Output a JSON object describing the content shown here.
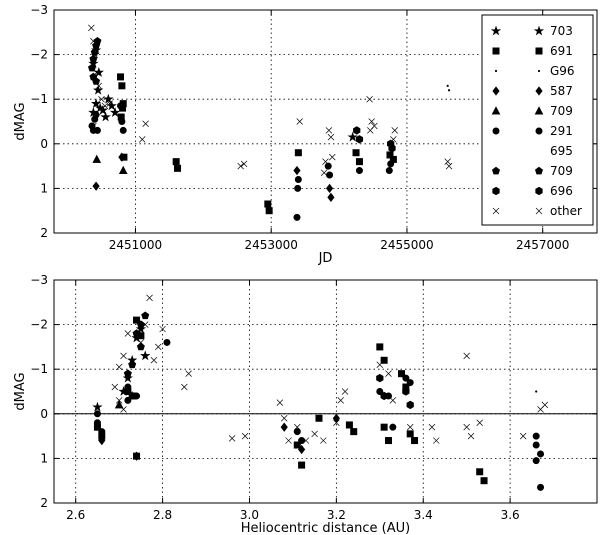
{
  "chart_data": [
    {
      "type": "scatter",
      "xlabel": "JD",
      "ylabel": "dMAG",
      "xlim": [
        2449800,
        2457800
      ],
      "ylim": [
        2,
        -3
      ],
      "y_inverted": true,
      "x_ticks": [
        2451000,
        2453000,
        2455000,
        2457000
      ],
      "y_ticks": [
        -3,
        -2,
        -1,
        0,
        1,
        2
      ],
      "y_tick_labels": [
        "−3",
        "−2",
        "−1",
        "0",
        "1",
        "2"
      ],
      "grid": true,
      "legend_placement": "right",
      "series": [
        {
          "name": "703",
          "marker": "star",
          "points": [
            [
              2450380,
              -0.7
            ],
            [
              2450420,
              -0.9
            ],
            [
              2450450,
              -1.2
            ],
            [
              2450480,
              -0.8
            ],
            [
              2450520,
              -0.75
            ],
            [
              2450560,
              -0.6
            ],
            [
              2450600,
              -1.0
            ],
            [
              2450650,
              -0.85
            ],
            [
              2450700,
              -0.7
            ],
            [
              2450380,
              -1.8
            ],
            [
              2450420,
              -2.1
            ],
            [
              2450460,
              -1.6
            ],
            [
              2454200,
              -0.15
            ]
          ]
        },
        {
          "name": "691",
          "marker": "square",
          "points": [
            [
              2450780,
              -1.5
            ],
            [
              2450800,
              -1.3
            ],
            [
              2450820,
              -0.9
            ],
            [
              2450790,
              -0.6
            ],
            [
              2450810,
              -0.8
            ],
            [
              2450830,
              0.3
            ],
            [
              2451600,
              0.4
            ],
            [
              2451620,
              0.55
            ],
            [
              2452950,
              1.35
            ],
            [
              2452970,
              1.5
            ],
            [
              2453400,
              0.2
            ],
            [
              2454250,
              0.2
            ],
            [
              2454300,
              0.4
            ],
            [
              2454750,
              0.25
            ],
            [
              2454800,
              0.35
            ]
          ]
        },
        {
          "name": "G96",
          "marker": "dot",
          "points": [
            [
              2455600,
              -1.3
            ],
            [
              2455620,
              -1.2
            ]
          ]
        },
        {
          "name": "587",
          "marker": "diamond",
          "points": [
            [
              2450420,
              0.95
            ],
            [
              2450800,
              0.3
            ],
            [
              2453380,
              0.6
            ],
            [
              2453860,
              1.0
            ],
            [
              2453880,
              1.2
            ]
          ]
        },
        {
          "name": "709",
          "marker": "triangle",
          "points": [
            [
              2450430,
              0.35
            ],
            [
              2450820,
              0.6
            ]
          ]
        },
        {
          "name": "291",
          "marker": "circle",
          "points": [
            [
              2450360,
              -0.4
            ],
            [
              2450380,
              -0.3
            ],
            [
              2450400,
              -0.55
            ],
            [
              2450420,
              -0.65
            ],
            [
              2450440,
              -0.3
            ],
            [
              2450780,
              -0.85
            ],
            [
              2450800,
              -0.5
            ],
            [
              2450820,
              -0.3
            ],
            [
              2453380,
              1.65
            ],
            [
              2453390,
              1.0
            ],
            [
              2453400,
              0.8
            ],
            [
              2453840,
              0.5
            ],
            [
              2453860,
              0.7
            ],
            [
              2454300,
              0.6
            ],
            [
              2454740,
              0.6
            ],
            [
              2454760,
              0.45
            ]
          ]
        },
        {
          "name": "695",
          "marker": "none",
          "points": []
        },
        {
          "name": "709",
          "marker": "pentagon",
          "points": [
            [
              2450360,
              -1.7
            ],
            [
              2450380,
              -1.9
            ],
            [
              2450400,
              -2.05
            ],
            [
              2450420,
              -2.2
            ],
            [
              2450440,
              -2.3
            ],
            [
              2450380,
              -1.5
            ],
            [
              2450420,
              -1.4
            ]
          ]
        },
        {
          "name": "696",
          "marker": "hexagon",
          "points": [
            [
              2454260,
              -0.3
            ],
            [
              2454300,
              -0.1
            ],
            [
              2454760,
              0.0
            ],
            [
              2454780,
              0.1
            ]
          ]
        },
        {
          "name": "other",
          "marker": "x",
          "points": [
            [
              2450350,
              -2.6
            ],
            [
              2450380,
              -2.3
            ],
            [
              2450400,
              -2.0
            ],
            [
              2450430,
              -1.6
            ],
            [
              2450460,
              -1.3
            ],
            [
              2450500,
              -1.0
            ],
            [
              2450550,
              -0.85
            ],
            [
              2450620,
              -0.9
            ],
            [
              2450380,
              -0.4
            ],
            [
              2451150,
              -0.45
            ],
            [
              2451100,
              -0.1
            ],
            [
              2452550,
              0.5
            ],
            [
              2452600,
              0.45
            ],
            [
              2453420,
              -0.5
            ],
            [
              2453850,
              -0.3
            ],
            [
              2453880,
              -0.15
            ],
            [
              2453900,
              0.3
            ],
            [
              2453800,
              0.4
            ],
            [
              2453780,
              0.65
            ],
            [
              2454450,
              -1.0
            ],
            [
              2454480,
              -0.5
            ],
            [
              2454520,
              -0.4
            ],
            [
              2454460,
              -0.3
            ],
            [
              2454800,
              -0.1
            ],
            [
              2454820,
              -0.3
            ],
            [
              2455600,
              0.4
            ],
            [
              2455620,
              0.5
            ]
          ]
        }
      ]
    },
    {
      "type": "scatter",
      "xlabel": "Heliocentric distance (AU)",
      "ylabel": "dMAG",
      "xlim": [
        2.55,
        3.8
      ],
      "ylim": [
        2,
        -3
      ],
      "y_inverted": true,
      "x_ticks": [
        2.6,
        2.8,
        3.0,
        3.2,
        3.4,
        3.6
      ],
      "y_ticks": [
        -3,
        -2,
        -1,
        0,
        1,
        2
      ],
      "y_tick_labels": [
        "−3",
        "−2",
        "−1",
        "0",
        "1",
        "2"
      ],
      "grid": true,
      "zero_line": true,
      "series": [
        {
          "name": "703",
          "marker": "star",
          "points": [
            [
              2.65,
              -0.15
            ],
            [
              2.72,
              -0.8
            ],
            [
              2.73,
              -1.2
            ],
            [
              2.74,
              -1.7
            ],
            [
              2.75,
              -1.9
            ],
            [
              2.71,
              -0.5
            ],
            [
              2.76,
              -1.3
            ]
          ]
        },
        {
          "name": "691",
          "marker": "square",
          "points": [
            [
              2.65,
              0.3
            ],
            [
              2.66,
              0.5
            ],
            [
              2.72,
              -0.5
            ],
            [
              2.73,
              -0.4
            ],
            [
              2.74,
              -2.1
            ],
            [
              2.75,
              -1.75
            ],
            [
              2.74,
              0.95
            ],
            [
              3.11,
              0.7
            ],
            [
              3.12,
              1.15
            ],
            [
              3.16,
              0.1
            ],
            [
              3.23,
              0.25
            ],
            [
              3.24,
              0.4
            ],
            [
              3.3,
              -1.5
            ],
            [
              3.31,
              -1.2
            ],
            [
              3.31,
              0.3
            ],
            [
              3.32,
              0.6
            ],
            [
              3.35,
              -0.9
            ],
            [
              3.36,
              -0.6
            ],
            [
              3.37,
              0.45
            ],
            [
              3.38,
              0.6
            ],
            [
              3.53,
              1.3
            ],
            [
              3.54,
              1.5
            ]
          ]
        },
        {
          "name": "G96",
          "marker": "dot",
          "points": [
            [
              3.66,
              -0.5
            ]
          ]
        },
        {
          "name": "587",
          "marker": "diamond",
          "points": [
            [
              2.66,
              0.6
            ],
            [
              2.74,
              0.95
            ],
            [
              3.08,
              0.3
            ],
            [
              3.12,
              0.8
            ],
            [
              3.2,
              0.1
            ]
          ]
        },
        {
          "name": "709",
          "marker": "triangle",
          "points": [
            [
              2.7,
              -0.2
            ],
            [
              2.73,
              -0.4
            ]
          ]
        },
        {
          "name": "291",
          "marker": "circle",
          "points": [
            [
              2.65,
              0.0
            ],
            [
              2.65,
              0.2
            ],
            [
              2.66,
              0.4
            ],
            [
              2.72,
              -0.3
            ],
            [
              2.72,
              -0.6
            ],
            [
              2.74,
              -0.4
            ],
            [
              2.81,
              -1.6
            ],
            [
              3.11,
              0.4
            ],
            [
              3.12,
              0.6
            ],
            [
              3.3,
              -0.5
            ],
            [
              3.32,
              -0.4
            ],
            [
              3.33,
              0.3
            ],
            [
              3.36,
              -0.8
            ],
            [
              3.37,
              -0.7
            ],
            [
              3.66,
              0.5
            ],
            [
              3.66,
              0.7
            ],
            [
              3.67,
              0.9
            ],
            [
              3.66,
              1.05
            ],
            [
              3.67,
              1.65
            ]
          ]
        },
        {
          "name": "695",
          "marker": "none",
          "points": []
        },
        {
          "name": "709",
          "marker": "pentagon",
          "points": [
            [
              2.72,
              -0.9
            ],
            [
              2.73,
              -1.1
            ],
            [
              2.74,
              -1.8
            ],
            [
              2.75,
              -2.0
            ],
            [
              2.76,
              -2.2
            ],
            [
              2.75,
              -1.5
            ]
          ]
        },
        {
          "name": "696",
          "marker": "hexagon",
          "points": [
            [
              3.3,
              -0.8
            ],
            [
              3.31,
              -0.4
            ],
            [
              3.36,
              -0.5
            ],
            [
              3.37,
              -0.2
            ]
          ]
        },
        {
          "name": "other",
          "marker": "x",
          "points": [
            [
              2.69,
              -0.6
            ],
            [
              2.7,
              -0.3
            ],
            [
              2.71,
              -0.1
            ],
            [
              2.7,
              -1.05
            ],
            [
              2.71,
              -1.3
            ],
            [
              2.72,
              -1.8
            ],
            [
              2.74,
              -2.1
            ],
            [
              2.75,
              -1.6
            ],
            [
              2.76,
              -2.0
            ],
            [
              2.77,
              -2.6
            ],
            [
              2.78,
              -1.2
            ],
            [
              2.79,
              -1.5
            ],
            [
              2.8,
              -1.9
            ],
            [
              2.85,
              -0.6
            ],
            [
              2.86,
              -0.9
            ],
            [
              2.96,
              0.55
            ],
            [
              2.99,
              0.5
            ],
            [
              3.07,
              -0.25
            ],
            [
              3.08,
              0.1
            ],
            [
              3.09,
              0.6
            ],
            [
              3.11,
              0.3
            ],
            [
              3.13,
              0.6
            ],
            [
              3.15,
              0.45
            ],
            [
              3.17,
              0.6
            ],
            [
              3.2,
              0.2
            ],
            [
              3.21,
              -0.3
            ],
            [
              3.22,
              -0.5
            ],
            [
              3.3,
              -1.1
            ],
            [
              3.32,
              -0.9
            ],
            [
              3.33,
              -0.3
            ],
            [
              3.37,
              0.3
            ],
            [
              3.42,
              0.3
            ],
            [
              3.43,
              0.6
            ],
            [
              3.5,
              -1.3
            ],
            [
              3.5,
              0.3
            ],
            [
              3.51,
              0.5
            ],
            [
              3.53,
              0.2
            ],
            [
              3.63,
              0.5
            ],
            [
              3.67,
              -0.1
            ],
            [
              3.68,
              -0.2
            ]
          ]
        }
      ]
    }
  ],
  "legend": {
    "entries": [
      {
        "label": "703",
        "marker": "star"
      },
      {
        "label": "691",
        "marker": "square"
      },
      {
        "label": "G96",
        "marker": "dot"
      },
      {
        "label": "587",
        "marker": "diamond"
      },
      {
        "label": "709",
        "marker": "triangle"
      },
      {
        "label": "291",
        "marker": "circle"
      },
      {
        "label": "695",
        "marker": "none"
      },
      {
        "label": "709",
        "marker": "pentagon"
      },
      {
        "label": "696",
        "marker": "hexagon"
      },
      {
        "label": "other",
        "marker": "x"
      }
    ]
  }
}
